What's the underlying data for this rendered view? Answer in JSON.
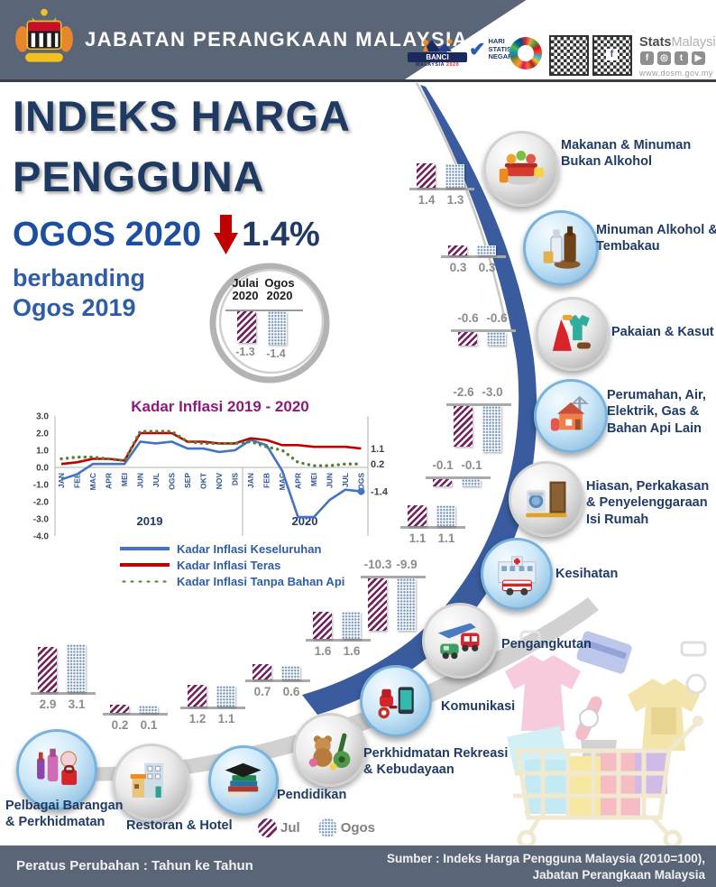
{
  "header": {
    "agency": "JABATAN PERANGKAAN MALAYSIA",
    "logos": {
      "banci_lines": [
        "BANCI",
        "MALAYSIA",
        "2020"
      ],
      "hari_lines": [
        "HARI",
        "STATISTIK",
        "NEGARA"
      ],
      "stats_bold": "Stats",
      "stats_light": "Malaysia",
      "website": "www.dosm.gov.my",
      "social": [
        "facebook",
        "instagram",
        "twitter",
        "youtube"
      ]
    }
  },
  "title": {
    "line1": "INDEKS HARGA",
    "line2": "PENGGUNA"
  },
  "headline": {
    "month": "OGOS 2020",
    "value": "1.4%",
    "direction": "down"
  },
  "compare": {
    "line1": "berbanding",
    "line2": "Ogos 2019"
  },
  "badge": {
    "left_label": [
      "Julai",
      "2020"
    ],
    "right_label": [
      "Ogos",
      "2020"
    ],
    "left_value": "-1.3",
    "right_value": "-1.4"
  },
  "legend": {
    "jul": "Jul",
    "ogos": "Ogos"
  },
  "footer": {
    "left": "Peratus Perubahan : Tahun ke Tahun",
    "right_line1": "Sumber : Indeks Harga Pengguna Malaysia (2010=100),",
    "right_line2": "Jabatan Perangkaan Malaysia"
  },
  "colors": {
    "slate": "#5a6678",
    "navy": "#1e3a63",
    "blue": "#1d4fa1",
    "red_arrow": "#c00000",
    "chart_title_purple": "#8b1a7b",
    "jul_bar": "#72205f",
    "ogos_bar": "#7e9cc1",
    "swoosh_blue": "#3a5c9e"
  },
  "categories": [
    {
      "name": "Makanan & Minuman Bukan Alkohol",
      "lines": [
        "Makanan & Minuman",
        "Bukan Alkohol"
      ],
      "icon": "food",
      "jul": 1.4,
      "ogos": 1.3
    },
    {
      "name": "Minuman Alkohol & Tembakau",
      "lines": [
        "Minuman Alkohol &",
        "Tembakau"
      ],
      "icon": "drinks",
      "jul": 0.3,
      "ogos": 0.3
    },
    {
      "name": "Pakaian & Kasut",
      "lines": [
        "Pakaian & Kasut"
      ],
      "icon": "clothing",
      "jul": -0.6,
      "ogos": -0.6
    },
    {
      "name": "Perumahan, Air, Elektrik, Gas & Bahan Api Lain",
      "lines": [
        "Perumahan, Air,",
        "Elektrik, Gas &",
        "Bahan Api Lain"
      ],
      "icon": "housing",
      "jul": -2.6,
      "ogos": -3.0
    },
    {
      "name": "Hiasan, Perkakasan & Penyelenggaraan Isi Rumah",
      "lines": [
        "Hiasan, Perkakasan",
        "& Penyelenggaraan",
        "Isi Rumah"
      ],
      "icon": "furnishings",
      "jul": -0.1,
      "ogos": -0.1
    },
    {
      "name": "Kesihatan",
      "lines": [
        "Kesihatan"
      ],
      "icon": "health",
      "jul": 1.1,
      "ogos": 1.1
    },
    {
      "name": "Pengangkutan",
      "lines": [
        "Pengangkutan"
      ],
      "icon": "transport",
      "jul": -10.3,
      "ogos": -9.9
    },
    {
      "name": "Komunikasi",
      "lines": [
        "Komunikasi"
      ],
      "icon": "communication",
      "jul": 1.6,
      "ogos": 1.6
    },
    {
      "name": "Perkhidmatan Rekreasi & Kebudayaan",
      "lines": [
        "Perkhidmatan Rekreasi",
        "& Kebudayaan"
      ],
      "icon": "recreation",
      "jul": 0.7,
      "ogos": 0.6
    },
    {
      "name": "Pendidikan",
      "lines": [
        "Pendidikan"
      ],
      "icon": "education",
      "jul": 1.2,
      "ogos": 1.1
    },
    {
      "name": "Restoran & Hotel",
      "lines": [
        "Restoran & Hotel"
      ],
      "icon": "restaurant",
      "jul": 0.2,
      "ogos": 0.1
    },
    {
      "name": "Pelbagai Barangan & Perkhidmatan",
      "lines": [
        "Pelbagai Barangan",
        "& Perkhidmatan"
      ],
      "icon": "misc",
      "jul": 2.9,
      "ogos": 3.1
    }
  ],
  "chart_data": [
    {
      "type": "line",
      "title": "Kadar Inflasi 2019 - 2020",
      "x": [
        "JAN",
        "FEB",
        "MAC",
        "APR",
        "MEI",
        "JUN",
        "JUL",
        "OGS",
        "SEP",
        "OKT",
        "NOV",
        "DIS",
        "JAN",
        "FEB",
        "MAC",
        "APR",
        "MEI",
        "JUN",
        "JUL",
        "OGS"
      ],
      "year_labels": [
        "2019",
        "2020"
      ],
      "ylabel": "",
      "ylim": [
        -4.0,
        3.0
      ],
      "yticks": [
        3.0,
        2.0,
        1.0,
        0.0,
        -1.0,
        -2.0,
        -3.0,
        -4.0
      ],
      "grid": false,
      "legend_position": "bottom",
      "series": [
        {
          "name": "Kadar Inflasi Keseluruhan",
          "color": "#4472c4",
          "style": "solid",
          "end_label": "-1.4",
          "values": [
            -0.7,
            -0.4,
            0.2,
            0.2,
            0.2,
            1.5,
            1.4,
            1.5,
            1.1,
            1.1,
            0.9,
            1.0,
            1.6,
            1.3,
            -0.2,
            -2.9,
            -2.9,
            -1.9,
            -1.3,
            -1.4
          ]
        },
        {
          "name": "Kadar Inflasi Teras",
          "color": "#c00000",
          "style": "solid",
          "end_label": "1.1",
          "values": [
            0.2,
            0.3,
            0.5,
            0.5,
            0.4,
            2.0,
            2.0,
            2.0,
            1.5,
            1.5,
            1.4,
            1.4,
            1.7,
            1.6,
            1.3,
            1.3,
            1.2,
            1.2,
            1.2,
            1.1
          ]
        },
        {
          "name": "Kadar Inflasi Tanpa Bahan Api",
          "color": "#548235",
          "style": "dotted",
          "end_label": "0.2",
          "values": [
            0.5,
            0.6,
            0.6,
            0.5,
            0.4,
            2.1,
            2.1,
            2.1,
            1.5,
            1.4,
            1.4,
            1.4,
            1.5,
            1.2,
            1.0,
            0.3,
            0.1,
            0.1,
            0.2,
            0.2
          ]
        }
      ]
    },
    {
      "type": "bar",
      "title": "Peratus Perubahan : Tahun ke Tahun",
      "categories": [
        "Makanan & Minuman Bukan Alkohol",
        "Minuman Alkohol & Tembakau",
        "Pakaian & Kasut",
        "Perumahan, Air, Elektrik, Gas & Bahan Api Lain",
        "Hiasan, Perkakasan & Penyelenggaraan Isi Rumah",
        "Kesihatan",
        "Pengangkutan",
        "Komunikasi",
        "Perkhidmatan Rekreasi & Kebudayaan",
        "Pendidikan",
        "Restoran & Hotel",
        "Pelbagai Barangan & Perkhidmatan"
      ],
      "series": [
        {
          "name": "Jul",
          "values": [
            1.4,
            0.3,
            -0.6,
            -2.6,
            -0.1,
            1.1,
            -10.3,
            1.6,
            0.7,
            1.2,
            0.2,
            2.9
          ]
        },
        {
          "name": "Ogos",
          "values": [
            1.3,
            0.3,
            -0.6,
            -3.0,
            -0.1,
            1.1,
            -9.9,
            1.6,
            0.6,
            1.1,
            0.1,
            3.1
          ]
        }
      ]
    },
    {
      "type": "bar",
      "title": "berbanding Ogos 2019",
      "categories": [
        "Julai 2020",
        "Ogos 2020"
      ],
      "values": [
        -1.3,
        -1.4
      ]
    }
  ]
}
